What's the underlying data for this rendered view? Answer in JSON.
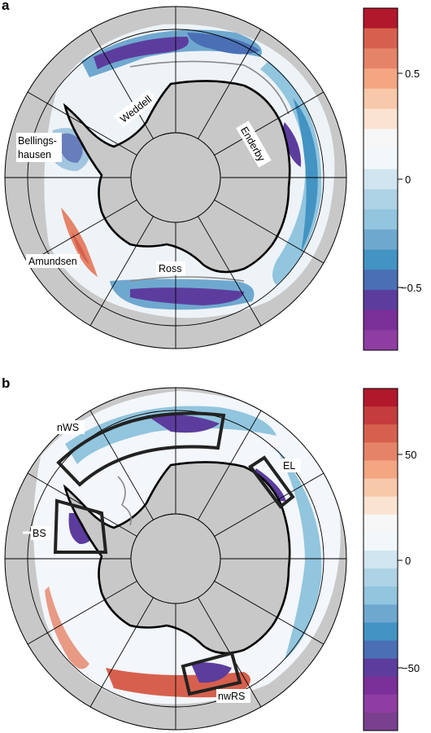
{
  "panel_a": {
    "letter": "a",
    "labels": {
      "weddell": "Weddell",
      "enderby": "Enderby",
      "bellings_line1": "Bellings-",
      "bellings_line2": "hausen",
      "amundsen": "Amundsen",
      "ross": "Ross"
    },
    "colorbar": {
      "ticks": [
        "0.5",
        "0",
        "−0.5"
      ],
      "colors": [
        "#b2182b",
        "#d6604d",
        "#e58368",
        "#f4a582",
        "#f7c8a9",
        "#fbe3d2",
        "#f7f7f7",
        "#f2f7fb",
        "#d1e5f0",
        "#aed3e6",
        "#92c5de",
        "#6fa8cf",
        "#4393c3",
        "#4a6fb5",
        "#5c3d9e",
        "#7b2f99",
        "#8e3da2"
      ]
    }
  },
  "panel_b": {
    "letter": "b",
    "labels": {
      "nws": "nWS",
      "el": "EL",
      "bs": "BS",
      "nwrs": "nwRS"
    },
    "colorbar": {
      "ticks": [
        "50",
        "0",
        "−50"
      ],
      "colors": [
        "#b2182b",
        "#c43c3c",
        "#d6604d",
        "#e58368",
        "#f4a582",
        "#f7c8a9",
        "#fbe3d2",
        "#f7f7f7",
        "#f2f7fb",
        "#d1e5f0",
        "#aed3e6",
        "#92c5de",
        "#6fa8cf",
        "#4393c3",
        "#4a6fb5",
        "#5c3d9e",
        "#7b2f99",
        "#8e3da2",
        "#7a3f8f"
      ]
    }
  }
}
